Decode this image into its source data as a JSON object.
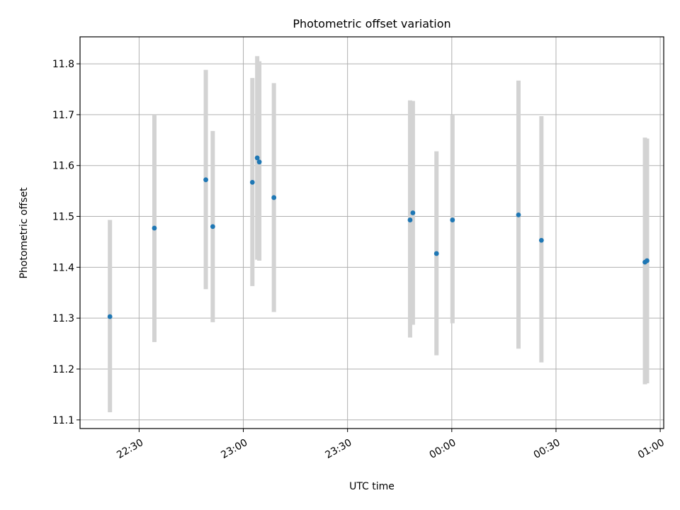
{
  "chart_data": {
    "type": "scatter",
    "title": "Photometric offset variation",
    "xlabel": "UTC time",
    "ylabel": "Photometric offset",
    "x_axis_kind": "time",
    "x_range": [
      "22:13:00",
      "01:01:00"
    ],
    "ylim": [
      11.083,
      11.853
    ],
    "x_ticks": [
      {
        "t": "22:30:00",
        "label": "22:30"
      },
      {
        "t": "23:00:00",
        "label": "23:00"
      },
      {
        "t": "23:30:00",
        "label": "23:30"
      },
      {
        "t": "00:00:00",
        "label": "00:00"
      },
      {
        "t": "00:30:00",
        "label": "00:30"
      },
      {
        "t": "01:00:00",
        "label": "01:00"
      }
    ],
    "y_ticks": [
      11.1,
      11.2,
      11.3,
      11.4,
      11.5,
      11.6,
      11.7,
      11.8
    ],
    "y_tick_labels": [
      "11.1",
      "11.2",
      "11.3",
      "11.4",
      "11.5",
      "11.6",
      "11.7",
      "11.8"
    ],
    "grid": true,
    "point_color": "#1f77b4",
    "errorbar_color": "#d3d3d3",
    "points": [
      {
        "t": "22:21:36",
        "y": 11.303,
        "low": 11.115,
        "high": 11.493
      },
      {
        "t": "22:34:24",
        "y": 11.477,
        "low": 11.253,
        "high": 11.7
      },
      {
        "t": "22:49:12",
        "y": 11.572,
        "low": 11.357,
        "high": 11.788
      },
      {
        "t": "22:51:12",
        "y": 11.48,
        "low": 11.292,
        "high": 11.668
      },
      {
        "t": "23:02:36",
        "y": 11.567,
        "low": 11.363,
        "high": 11.772
      },
      {
        "t": "23:04:00",
        "y": 11.615,
        "low": 11.415,
        "high": 11.815
      },
      {
        "t": "23:04:36",
        "y": 11.607,
        "low": 11.413,
        "high": 11.805
      },
      {
        "t": "23:08:48",
        "y": 11.537,
        "low": 11.312,
        "high": 11.762
      },
      {
        "t": "23:48:00",
        "y": 11.493,
        "low": 11.262,
        "high": 11.728
      },
      {
        "t": "23:48:48",
        "y": 11.507,
        "low": 11.287,
        "high": 11.727
      },
      {
        "t": "23:55:36",
        "y": 11.427,
        "low": 11.227,
        "high": 11.628
      },
      {
        "t": "00:00:12",
        "y": 11.493,
        "low": 11.29,
        "high": 11.7
      },
      {
        "t": "00:19:12",
        "y": 11.503,
        "low": 11.24,
        "high": 11.767
      },
      {
        "t": "00:25:48",
        "y": 11.453,
        "low": 11.213,
        "high": 11.697
      },
      {
        "t": "00:55:36",
        "y": 11.41,
        "low": 11.17,
        "high": 11.655
      },
      {
        "t": "00:56:12",
        "y": 11.413,
        "low": 11.172,
        "high": 11.653
      }
    ]
  }
}
